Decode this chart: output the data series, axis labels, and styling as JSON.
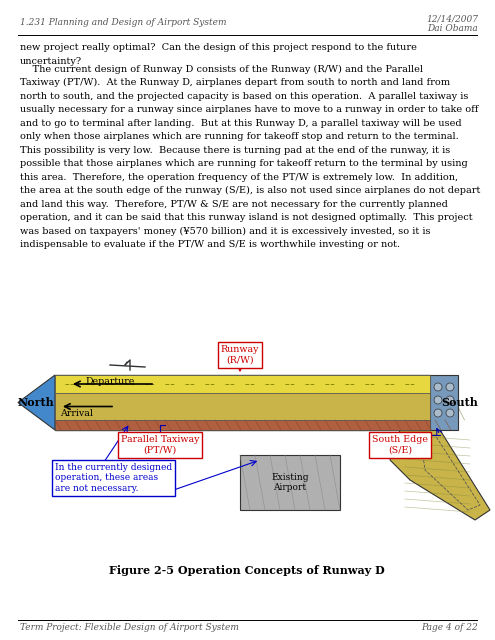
{
  "header_left": "1.231 Planning and Design of Airport System",
  "header_right_top": "12/14/2007",
  "header_right_bottom": "Dai Obama",
  "footer_left": "Term Project: Flexible Design of Airport System",
  "footer_right": "Page 4 of 22",
  "p1_line1": "new project really optimal?  Can the design of this project respond to the future",
  "p1_line2": "uncertainty?",
  "p2_lines": [
    "    The current design of Runway D consists of the Runway (R/W) and the Parallel",
    "Taxiway (PT/W).  At the Runway D, airplanes depart from south to north and land from",
    "north to south, and the projected capacity is based on this operation.  A parallel taxiway is",
    "usually necessary for a runway since airplanes have to move to a runway in order to take off",
    "and to go to terminal after landing.  But at this Runway D, a parallel taxiway will be used",
    "only when those airplanes which are running for takeoff stop and return to the terminal.",
    "This possibility is very low.  Because there is turning pad at the end of the runway, it is",
    "possible that those airplanes which are running for takeoff return to the terminal by using",
    "this area.  Therefore, the operation frequency of the PT/W is extremely low.  In addition,",
    "the area at the south edge of the runway (S/E), is also not used since airplanes do not depart",
    "and land this way.  Therefore, PT/W & S/E are not necessary for the currently planned",
    "operation, and it can be said that this runway island is not designed optimally.  This project",
    "was based on taxpayers' money (¥570 billion) and it is excessively invested, so it is",
    "indispensable to evaluate if the PT/W and S/E is worthwhile investing or not."
  ],
  "figure_caption": "Figure 2-5 Operation Concepts of Runway D",
  "bg_color": "#ffffff",
  "text_color": "#000000"
}
